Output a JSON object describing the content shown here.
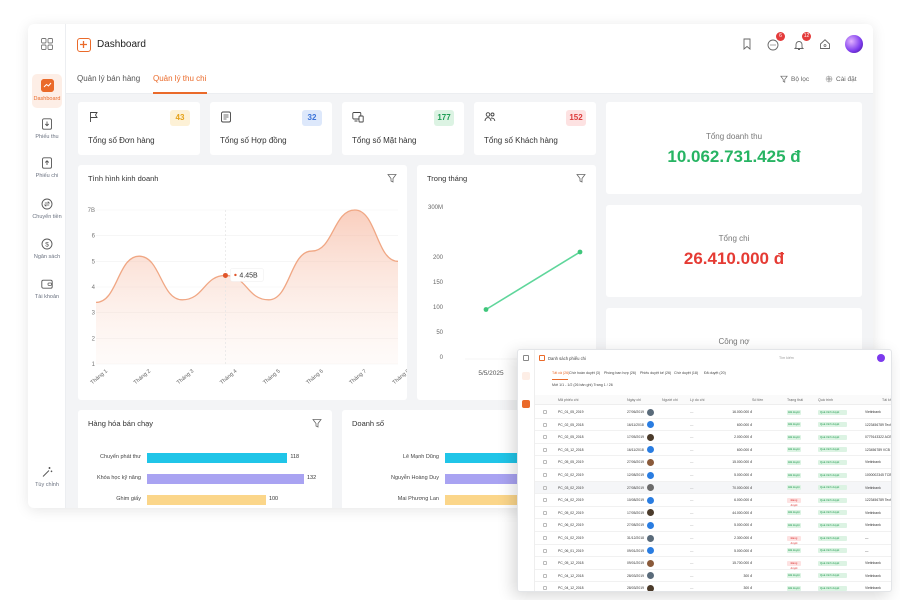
{
  "header": {
    "title": "Dashboard",
    "message_badge": "6",
    "bell_badge": "12"
  },
  "sidebar": {
    "items": [
      {
        "label": "Dashboard",
        "icon": "chart-icon",
        "active": true
      },
      {
        "label": "Phiếu thu",
        "icon": "receipt-in-icon"
      },
      {
        "label": "Phiếu chi",
        "icon": "receipt-out-icon"
      },
      {
        "label": "Chuyển tiền",
        "icon": "transfer-icon"
      },
      {
        "label": "Ngân sách",
        "icon": "budget-icon"
      },
      {
        "label": "Tài khoản",
        "icon": "wallet-icon"
      }
    ],
    "bottom_label": "Tùy chỉnh"
  },
  "tabs": [
    {
      "label": "Quản lý bán hàng"
    },
    {
      "label": "Quản lý thu chi",
      "active": true
    }
  ],
  "filters": {
    "filter_label": "Bộ lọc",
    "settings_label": "Cài đặt"
  },
  "stats": [
    {
      "label": "Tổng số Đơn hàng",
      "value": "43",
      "color": "#e5a21a",
      "bg": "#fdf1d6"
    },
    {
      "label": "Tổng số Hợp đồng",
      "value": "32",
      "color": "#3b73d9",
      "bg": "#dde8fb"
    },
    {
      "label": "Tổng số Mặt hàng",
      "value": "177",
      "color": "#1f9d55",
      "bg": "#dcf3e3"
    },
    {
      "label": "Tổng số Khách hàng",
      "value": "152",
      "color": "#dc3b3b",
      "bg": "#fde2e2"
    }
  ],
  "totals": {
    "revenue_label": "Tổng doanh thu",
    "revenue_value": "10.062.731.425 đ",
    "expense_label": "Tổng chi",
    "expense_value": "26.410.000 đ",
    "debt_label": "Công nợ"
  },
  "business_chart": {
    "title": "Tình hình kinh doanh",
    "tooltip": "4.45B",
    "chart_data": {
      "type": "area",
      "categories": [
        "Tháng 1",
        "Tháng 2",
        "Tháng 3",
        "Tháng 4",
        "Tháng 5",
        "Tháng 6",
        "Tháng 7",
        "Tháng 8"
      ],
      "values": [
        3.4,
        5.2,
        3.5,
        4.45,
        3.5,
        5.4,
        7.0,
        5.0
      ],
      "y_ticks": [
        "1",
        "2",
        "3",
        "4",
        "5",
        "6",
        "7B"
      ],
      "ylim": [
        1,
        7
      ],
      "color": "#f0a784"
    }
  },
  "month_chart": {
    "title": "Trong tháng",
    "chart_data": {
      "type": "line",
      "categories": [
        "5/5/2025",
        ""
      ],
      "values": [
        95,
        210
      ],
      "y_ticks": [
        "0",
        "50",
        "100",
        "150",
        "200",
        "300M"
      ],
      "ylim": [
        0,
        300
      ],
      "color": "#5fd69b"
    }
  },
  "bestsellers": {
    "title": "Hàng hóa bán chạy",
    "chart_data": {
      "type": "bar",
      "categories": [
        "Chuyển phát thư",
        "Khóa học kỹ năng",
        "Ghim giấy"
      ],
      "values": [
        118,
        132,
        100
      ],
      "colors": [
        "#20c5e8",
        "#a9a3f2",
        "#fbd68a"
      ]
    }
  },
  "sales": {
    "title": "Doanh số",
    "chart_data": {
      "type": "bar",
      "categories": [
        "Lê Mạnh Dũng",
        "Nguyễn Hoàng Duy",
        "Mai Phương Lan"
      ],
      "values": [
        20,
        38,
        31
      ],
      "colors": [
        "#20c5e8",
        "#a9a3f2",
        "#fbd68a"
      ]
    }
  },
  "overlay": {
    "title": "Danh sách phiếu chi",
    "search_placeholder": "Tìm kiếm",
    "tabs": [
      "Tất cả (26)",
      "Chờ hoàn duyệt (3)",
      "Phòng ban hợp (26)",
      "Phiếu duyệt kế (26)",
      "Chờ duyệt (18)",
      "Đã duyệt (20)"
    ],
    "toolbar": "Mới  1/1 - 1/2 (26 bản ghi)   Trang  1  / 26",
    "columns": [
      "Mã phiếu chi",
      "Ngày chi",
      "Người chi",
      "Lý do chi",
      "Số tiền",
      "Trạng thái",
      "Quá trình",
      "Tài khoản"
    ],
    "rows": [
      {
        "code": "PC_01_05_2019",
        "date": "27/06/2019",
        "amount": "16.000.000 đ",
        "status": "Đã duyệt",
        "step": "Quá trình duyệt",
        "account": "Vietinbank"
      },
      {
        "code": "PC_02_05_2018",
        "date": "16/11/2018",
        "amount": "600.000 đ",
        "status": "Đã duyệt",
        "step": "Quá trình duyệt",
        "account": "1223456789 Tech"
      },
      {
        "code": "PC_02_05_2018",
        "date": "17/05/2019",
        "amount": "2.000.000 đ",
        "status": "Đã duyệt",
        "step": "Quá trình duyệt",
        "account": "0779143322 ACB"
      },
      {
        "code": "PC_03_12_2018",
        "date": "16/11/2018",
        "amount": "600.000 đ",
        "status": "Đã duyệt",
        "step": "Quá trình duyệt",
        "account": "123456789 VCB"
      },
      {
        "code": "PC_05_05_2019",
        "date": "27/06/2019",
        "amount": "15.000.000 đ",
        "status": "Đã duyệt",
        "step": "Quá trình duyệt",
        "account": "Vietinbank"
      },
      {
        "code": "PC_02_02_2019",
        "date": "12/08/2019",
        "amount": "5.000.000 đ",
        "status": "Đã duyệt",
        "step": "Quá trình duyệt",
        "account": "1000002345 TCB"
      },
      {
        "code": "PC_03_02_2019",
        "date": "27/08/2019",
        "amount": "70.000.000 đ",
        "status": "Đã duyệt",
        "step": "Quá trình duyệt",
        "account": "Vietinbank"
      },
      {
        "code": "PC_04_02_2019",
        "date": "10/08/2019",
        "amount": "6.000.000 đ",
        "status": "Đang duyệt",
        "step": "Quá trình duyệt",
        "account": "1223456789 Tech"
      },
      {
        "code": "PC_05_02_2019",
        "date": "17/05/2019",
        "amount": "44.000.000 đ",
        "status": "Đã duyệt",
        "step": "Quá trình duyệt",
        "account": "Vietinbank"
      },
      {
        "code": "PC_06_02_2019",
        "date": "27/08/2019",
        "amount": "5.000.000 đ",
        "status": "Đã duyệt",
        "step": "Quá trình duyệt",
        "account": "Vietinbank"
      },
      {
        "code": "PC_01_02_2019",
        "date": "31/12/2018",
        "amount": "2.300.000 đ",
        "status": "Đang duyệt",
        "step": "Quá trình duyệt",
        "account": "—"
      },
      {
        "code": "PC_06_01_2019",
        "date": "09/01/2019",
        "amount": "5.000.000 đ",
        "status": "Đã duyệt",
        "step": "Quá trình duyệt",
        "account": "—"
      },
      {
        "code": "PC_05_12_2018",
        "date": "09/01/2019",
        "amount": "15.700.000 đ",
        "status": "Đang duyệt",
        "step": "Quá trình duyệt",
        "account": "Vietinbank"
      },
      {
        "code": "PC_04_12_2018",
        "date": "28/03/2019",
        "amount": "300 đ",
        "status": "Đã duyệt",
        "step": "Quá trình duyệt",
        "account": "Vietinbank"
      },
      {
        "code": "PC_04_12_2018",
        "date": "28/03/2019",
        "amount": "300 đ",
        "status": "Đã duyệt",
        "step": "Quá trình duyệt",
        "account": "Vietinbank"
      }
    ]
  }
}
